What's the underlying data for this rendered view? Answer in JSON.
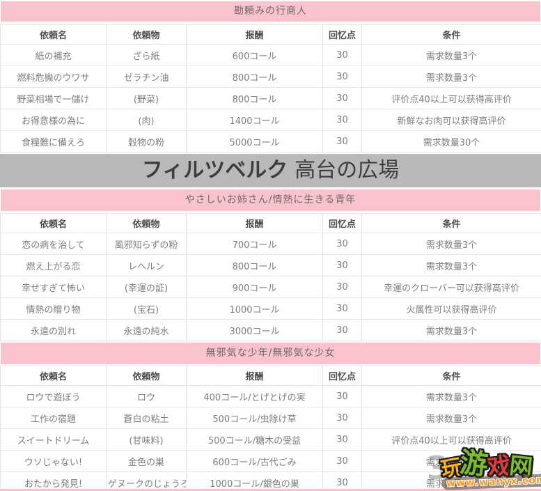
{
  "colors": {
    "pink": "#f9c3ce",
    "banner_bg": "#b9b9b9",
    "banner_text": "#3d3d3d",
    "body_text": "#7d7d7d"
  },
  "table_headers": [
    "依頼名",
    "依頼物",
    "报酬",
    "回忆点",
    "条件"
  ],
  "section1": {
    "title": "勘頼みの行商人",
    "rows": [
      [
        "紙の補充",
        "ざら紙",
        "600コール",
        "30",
        "需求数量3个"
      ],
      [
        "燃料危機のウワサ",
        "ゼラチン油",
        "800コール",
        "30",
        "需求数量3个"
      ],
      [
        "野菜相場で一儲け",
        "(野菜)",
        "800コール",
        "30",
        "评价点40以上可以获得高评价"
      ],
      [
        "お得意様の為に",
        "(肉)",
        "1400コール",
        "30",
        "新鮮なお肉可以获得高评价"
      ],
      [
        "食糧難に備えろ",
        "穀物の粉",
        "5000コール",
        "30",
        "需求数量30个"
      ]
    ]
  },
  "banner": {
    "bold": "フィルツベルク",
    "rest": "高台の広場"
  },
  "section2": {
    "title": "やさしいお姉さん/情熱に生きる青年",
    "rows": [
      [
        "恋の病を治して",
        "風邪知らずの粉",
        "700コール",
        "30",
        "需求数量3个"
      ],
      [
        "燃え上がる恋",
        "レヘルン",
        "800コール",
        "30",
        "需求数量3个"
      ],
      [
        "幸せすぎて怖い",
        "(幸運の証)",
        "900コール",
        "30",
        "幸運のクローバー可以获得高评价"
      ],
      [
        "情熱の贈り物",
        "(宝石)",
        "1000コール",
        "30",
        "火属性可以获得高评价"
      ],
      [
        "永遠の別れ",
        "永遠の純水",
        "3000コール",
        "30",
        "需求数量3个"
      ]
    ]
  },
  "section3": {
    "title": "無邪気な少年/無邪気な少女",
    "rows": [
      [
        "ロウで遊ぼう",
        "ロウ",
        "400コール/とげとげの実",
        "30",
        "需求数量3个"
      ],
      [
        "工作の宿題",
        "蒼白の粘土",
        "500コール/虫除け草",
        "30",
        "需求数量3个"
      ],
      [
        "スイートドリーム",
        "(甘味料)",
        "500コール/糖木の受益",
        "30",
        "评价点40以上可以获得高评价"
      ],
      [
        "ウソじゃない!",
        "金色の巣",
        "600コール/古代ごみ",
        "30",
        "需求数量3个"
      ],
      [
        "おたから発見!",
        "ゲヌークのじょうろ",
        "1000コール/銀色の巣",
        "30",
        "需求数量3个"
      ]
    ]
  },
  "watermark": {
    "site_chars": [
      {
        "text": "玩",
        "color": "#fcb61b"
      },
      {
        "text": "游",
        "color": "#7ebc2f"
      },
      {
        "text": "戏",
        "color": "#e23c3c"
      },
      {
        "text": "网",
        "color": "#7ebc2f"
      }
    ],
    "url": "www.wanyx.com",
    "ghost_digit": "3"
  }
}
